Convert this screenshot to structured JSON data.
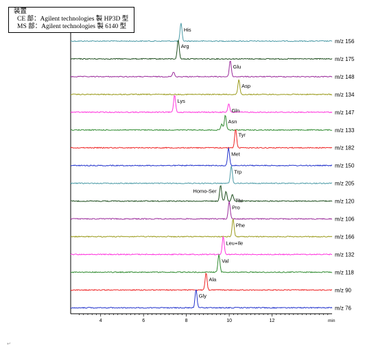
{
  "header_box": {
    "title": "装置",
    "line1": "CE 部：Agilent technologies 製 HP3D 型",
    "line2": "MS 部：Agilent technologies 製 6140 型"
  },
  "return_mark": "↵",
  "chart_data": {
    "type": "line",
    "title": "",
    "xlabel": "min",
    "ylabel": "",
    "xlim": [
      2.6,
      14.8
    ],
    "xticks": [
      4,
      6,
      8,
      10,
      12
    ],
    "xtick_labels": [
      "4",
      "6",
      "8",
      "10",
      "12"
    ],
    "grid": false,
    "series": [
      {
        "channel": "m/z 156",
        "color": "#4a9aa6",
        "peaks": [
          {
            "label": "His",
            "x": 7.75,
            "height": 26
          }
        ]
      },
      {
        "channel": "m/z 175",
        "color": "#1d4d1d",
        "peaks": [
          {
            "label": "Arg",
            "x": 7.62,
            "height": 28
          }
        ]
      },
      {
        "channel": "m/z 148",
        "color": "#9a2a9a",
        "peaks": [
          {
            "label": "Glu",
            "x": 10.05,
            "height": 24
          },
          {
            "x": 7.4,
            "height": 7
          }
        ]
      },
      {
        "channel": "m/z 134",
        "color": "#9a9a1a",
        "peaks": [
          {
            "label": "Asp",
            "x": 10.45,
            "height": 22
          }
        ]
      },
      {
        "channel": "m/z 147",
        "color": "#ff33dd",
        "peaks": [
          {
            "label": "Lys",
            "x": 7.45,
            "height": 26
          },
          {
            "label": "Gln",
            "x": 9.98,
            "height": 12
          }
        ]
      },
      {
        "channel": "m/z 133",
        "color": "#2e8a2e",
        "peaks": [
          {
            "label": "Asn",
            "x": 9.82,
            "height": 22
          },
          {
            "x": 9.65,
            "height": 9
          }
        ]
      },
      {
        "channel": "m/z 182",
        "color": "#ee2222",
        "peaks": [
          {
            "label": "Tyr",
            "x": 10.3,
            "height": 28
          }
        ]
      },
      {
        "channel": "m/z 150",
        "color": "#2233cc",
        "peaks": [
          {
            "label": "Met",
            "x": 9.97,
            "height": 26
          }
        ]
      },
      {
        "channel": "m/z 205",
        "color": "#4a9aa6",
        "peaks": [
          {
            "label": "Trp",
            "x": 10.1,
            "height": 26
          }
        ]
      },
      {
        "channel": "m/z 120",
        "color": "#1d4d1d",
        "peaks": [
          {
            "label": "Homo-Ser",
            "x": 9.6,
            "height": 24
          },
          {
            "x": 9.85,
            "height": 14
          },
          {
            "label": "Thr",
            "x": 10.15,
            "height": 10
          }
        ]
      },
      {
        "channel": "m/z 106",
        "color": "#9a2a9a",
        "peaks": [
          {
            "label": "Pro",
            "x": 10.0,
            "height": 26
          }
        ]
      },
      {
        "channel": "m/z 166",
        "color": "#9a9a1a",
        "peaks": [
          {
            "label": "Phe",
            "x": 10.18,
            "height": 26
          }
        ]
      },
      {
        "channel": "m/z 132",
        "color": "#ff33dd",
        "peaks": [
          {
            "label": "Leu+Ile",
            "x": 9.72,
            "height": 26
          }
        ]
      },
      {
        "channel": "m/z 118",
        "color": "#2e8a2e",
        "peaks": [
          {
            "label": "Val",
            "x": 9.52,
            "height": 26
          }
        ]
      },
      {
        "channel": "m/z 90",
        "color": "#ee2222",
        "peaks": [
          {
            "label": "Ala",
            "x": 8.92,
            "height": 25
          }
        ]
      },
      {
        "channel": "m/z 76",
        "color": "#2233cc",
        "peaks": [
          {
            "label": "Gly",
            "x": 8.45,
            "height": 27
          }
        ]
      }
    ]
  }
}
